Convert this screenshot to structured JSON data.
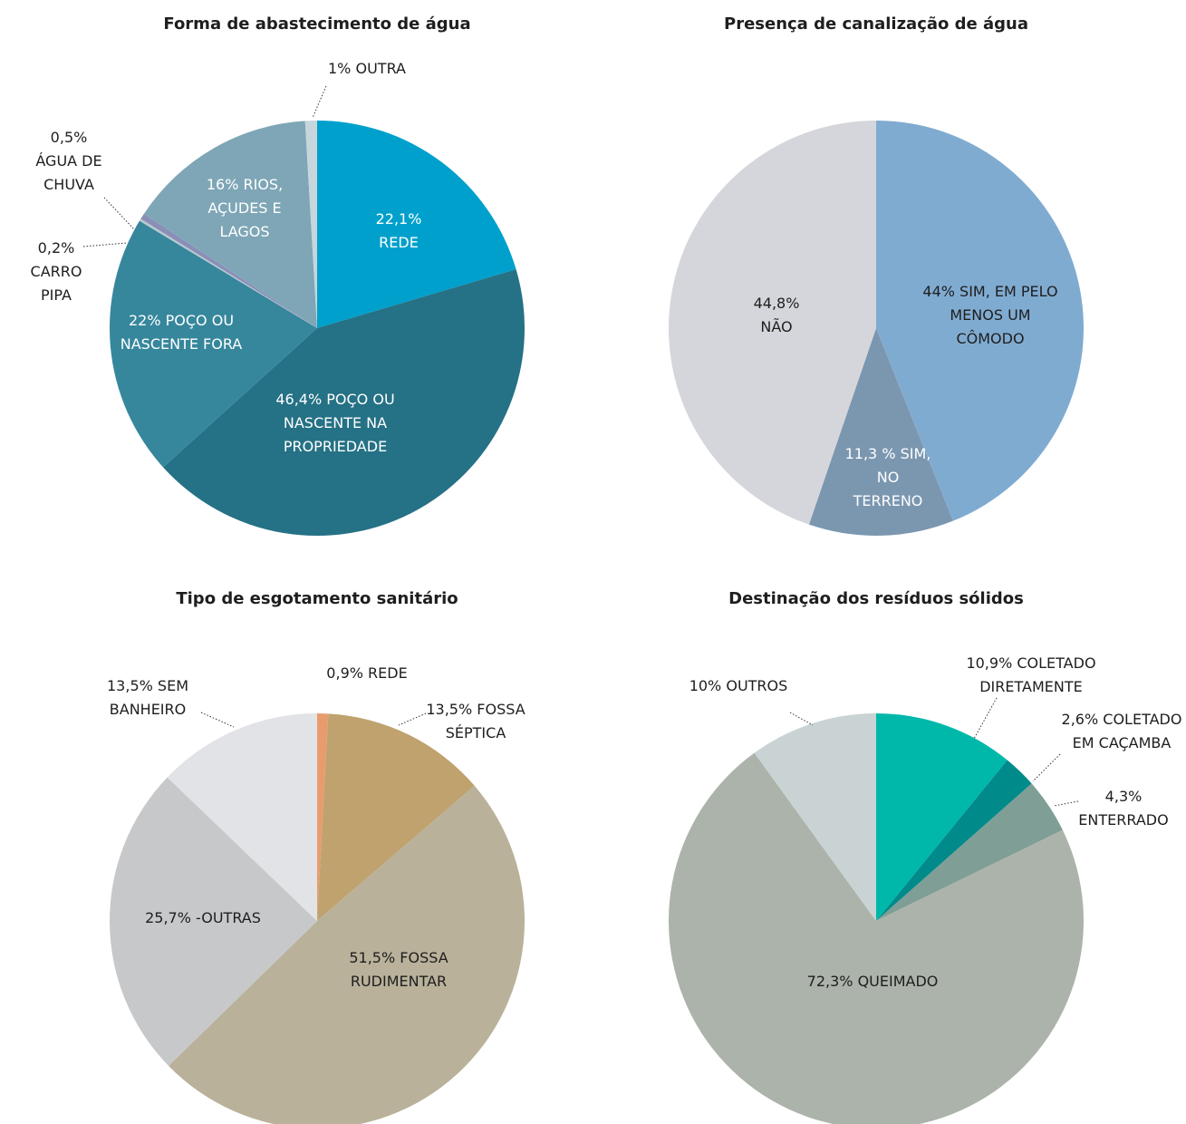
{
  "chart_data": [
    {
      "type": "pie",
      "title": "Forma de abastecimento de água",
      "categories": [
        "REDE",
        "POÇO OU NASCENTE NA PROPRIEDADE",
        "POÇO OU NASCENTE FORA",
        "CARRO PIPA",
        "ÁGUA DE CHUVA",
        "RIOS, AÇUDES E LAGOS",
        "OUTRA"
      ],
      "values": [
        22.1,
        46.4,
        22,
        0.2,
        0.5,
        16,
        1
      ],
      "value_labels": [
        "22,1%",
        "46,4%",
        "22%",
        "0,2%",
        "0,5%",
        "16%",
        "1%"
      ],
      "colors": [
        "#00a0cc",
        "#257185",
        "#36879c",
        "#b8c8cc",
        "#8a8fb8",
        "#7ea6b6",
        "#c6d6dc"
      ]
    },
    {
      "type": "pie",
      "title": "Presença de canalização de água",
      "categories": [
        "SIM, EM PELO MENOS UM CÔMODO",
        "SIM, NO TERRENO",
        "NÃO"
      ],
      "values": [
        44,
        11.3,
        44.8
      ],
      "value_labels": [
        "44%",
        "11,3 %",
        "44,8%"
      ],
      "colors": [
        "#80abd1",
        "#7b97b0",
        "#d5d6dc"
      ]
    },
    {
      "type": "pie",
      "title": "Tipo de esgotamento sanitário",
      "categories": [
        "REDE",
        "FOSSA SÉPTICA",
        "FOSSA RUDIMENTAR",
        "-OUTRAS",
        "SEM BANHEIRO"
      ],
      "values": [
        0.9,
        13.5,
        51.5,
        25.7,
        13.5
      ],
      "value_labels": [
        "0,9%",
        "13,5%",
        "51,5%",
        "25,7%",
        "13,5%"
      ],
      "colors": [
        "#e89c6e",
        "#bfa26e",
        "#b9b19a",
        "#c7c8ca",
        "#e2e3e6"
      ]
    },
    {
      "type": "pie",
      "title": "Destinação dos resíduos sólidos",
      "categories": [
        "COLETADO DIRETAMENTE",
        "COLETADO EM CAÇAMBA",
        "ENTERRADO",
        "QUEIMADO",
        "OUTROS"
      ],
      "values": [
        10.9,
        2.6,
        4.3,
        72.3,
        10
      ],
      "value_labels": [
        "10,9%",
        "2,6%",
        "4,3%",
        "72,3%",
        "10%"
      ],
      "colors": [
        "#00b8aa",
        "#008a8a",
        "#7f9e96",
        "#acb3aa",
        "#c9d3d3"
      ]
    }
  ]
}
